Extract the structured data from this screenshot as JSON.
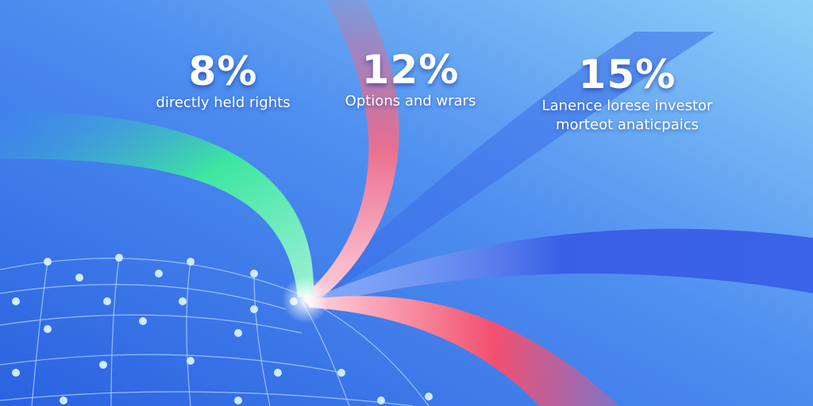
{
  "stats": [
    {
      "value": "8%",
      "label": "directly held rights",
      "label2": ""
    },
    {
      "value": "12%",
      "label": "Options and wrars",
      "label2": ""
    },
    {
      "value": "15%",
      "label": "Lanence lorese investor",
      "label2": "morteot anaticpaics"
    }
  ],
  "colors": {
    "background_left": "#2f6fe6",
    "background_right": "#8cc8f6",
    "ribbon_green": "#3ee6a0",
    "ribbon_pink": "#f2607a",
    "ribbon_blue": "#3a64e8",
    "globe_node": "#cfe9ff"
  }
}
